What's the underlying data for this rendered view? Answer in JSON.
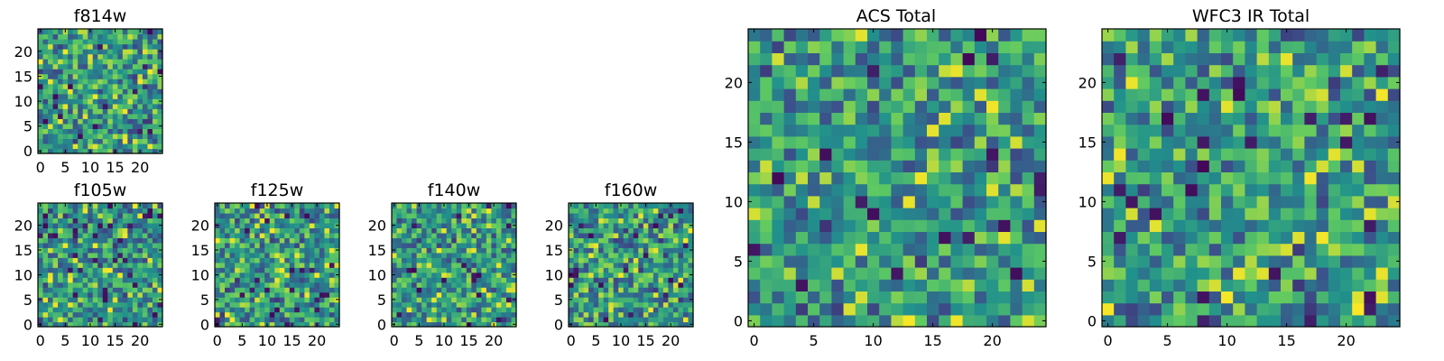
{
  "colormap": [
    "#440154",
    "#3b528b",
    "#21918c",
    "#5ec962",
    "#fde725"
  ],
  "chart_data": [
    {
      "type": "heatmap",
      "title": "f814w",
      "grid": false,
      "size": 25,
      "xlim": [
        0,
        24
      ],
      "ylim": [
        0,
        24
      ],
      "xticks": [
        0,
        5,
        10,
        15,
        20
      ],
      "yticks": [
        0,
        5,
        10,
        15,
        20
      ],
      "xlabel": "",
      "ylabel": "",
      "seed": 11
    },
    {
      "type": "heatmap",
      "title": "f105w",
      "grid": false,
      "size": 25,
      "xlim": [
        0,
        24
      ],
      "ylim": [
        0,
        24
      ],
      "xticks": [
        0,
        5,
        10,
        15,
        20
      ],
      "yticks": [
        0,
        5,
        10,
        15,
        20
      ],
      "xlabel": "",
      "ylabel": "",
      "seed": 23
    },
    {
      "type": "heatmap",
      "title": "f125w",
      "grid": false,
      "size": 25,
      "xlim": [
        0,
        24
      ],
      "ylim": [
        0,
        24
      ],
      "xticks": [
        0,
        5,
        10,
        15,
        20
      ],
      "yticks": [
        0,
        5,
        10,
        15,
        20
      ],
      "xlabel": "",
      "ylabel": "",
      "seed": 37
    },
    {
      "type": "heatmap",
      "title": "f140w",
      "grid": false,
      "size": 25,
      "xlim": [
        0,
        24
      ],
      "ylim": [
        0,
        24
      ],
      "xticks": [
        0,
        5,
        10,
        15,
        20
      ],
      "yticks": [
        0,
        5,
        10,
        15,
        20
      ],
      "xlabel": "",
      "ylabel": "",
      "seed": 41
    },
    {
      "type": "heatmap",
      "title": "f160w",
      "grid": false,
      "size": 25,
      "xlim": [
        0,
        24
      ],
      "ylim": [
        0,
        24
      ],
      "xticks": [
        0,
        5,
        10,
        15,
        20
      ],
      "yticks": [
        0,
        5,
        10,
        15,
        20
      ],
      "xlabel": "",
      "ylabel": "",
      "seed": 53
    },
    {
      "type": "heatmap",
      "title": "ACS Total",
      "grid": false,
      "size": 25,
      "xlim": [
        0,
        24
      ],
      "ylim": [
        0,
        24
      ],
      "xticks": [
        0,
        5,
        10,
        15,
        20
      ],
      "yticks": [
        0,
        5,
        10,
        15,
        20
      ],
      "xlabel": "",
      "ylabel": "",
      "seed": 67
    },
    {
      "type": "heatmap",
      "title": "WFC3 IR Total",
      "grid": false,
      "size": 25,
      "xlim": [
        0,
        24
      ],
      "ylim": [
        0,
        24
      ],
      "xticks": [
        0,
        5,
        10,
        15,
        20
      ],
      "yticks": [
        0,
        5,
        10,
        15,
        20
      ],
      "xlabel": "",
      "ylabel": "",
      "seed": 79
    }
  ]
}
